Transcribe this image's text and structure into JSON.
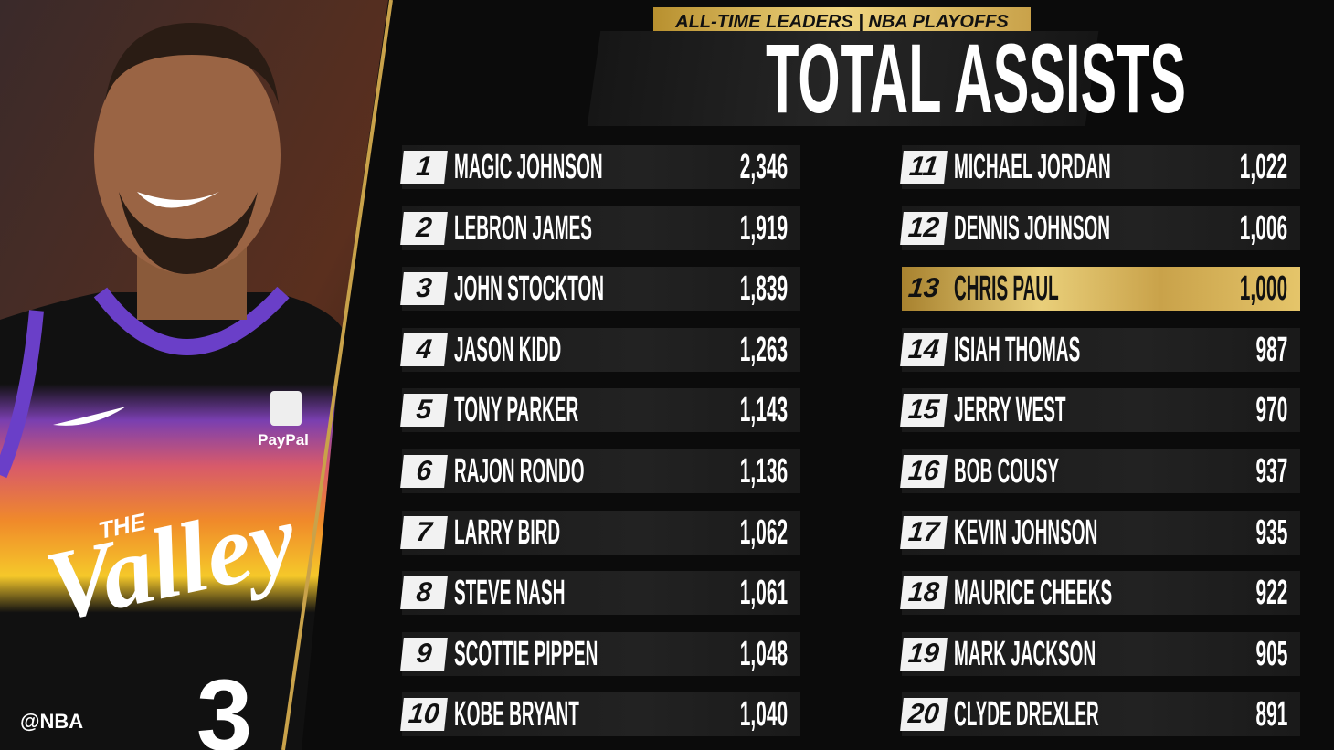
{
  "header": {
    "subtitle": "ALL-TIME LEADERS | NBA PLAYOFFS",
    "title": "TOTAL ASSISTS"
  },
  "photo": {
    "jersey_small": "THE",
    "jersey_big": "Valley",
    "sponsor": "PayPal",
    "number": "3",
    "credit": "@NBA"
  },
  "table": {
    "rows": [
      {
        "rank": 1,
        "name": "MAGIC JOHNSON",
        "value": "2,346"
      },
      {
        "rank": 2,
        "name": "LEBRON JAMES",
        "value": "1,919"
      },
      {
        "rank": 3,
        "name": "JOHN STOCKTON",
        "value": "1,839"
      },
      {
        "rank": 4,
        "name": "JASON KIDD",
        "value": "1,263"
      },
      {
        "rank": 5,
        "name": "TONY PARKER",
        "value": "1,143"
      },
      {
        "rank": 6,
        "name": "RAJON RONDO",
        "value": "1,136"
      },
      {
        "rank": 7,
        "name": "LARRY BIRD",
        "value": "1,062"
      },
      {
        "rank": 8,
        "name": "STEVE NASH",
        "value": "1,061"
      },
      {
        "rank": 9,
        "name": "SCOTTIE PIPPEN",
        "value": "1,048"
      },
      {
        "rank": 10,
        "name": "KOBE BRYANT",
        "value": "1,040"
      },
      {
        "rank": 11,
        "name": "MICHAEL JORDAN",
        "value": "1,022"
      },
      {
        "rank": 12,
        "name": "DENNIS JOHNSON",
        "value": "1,006"
      },
      {
        "rank": 13,
        "name": "CHRIS PAUL",
        "value": "1,000",
        "highlight": true
      },
      {
        "rank": 14,
        "name": "ISIAH THOMAS",
        "value": "987"
      },
      {
        "rank": 15,
        "name": "JERRY WEST",
        "value": "970"
      },
      {
        "rank": 16,
        "name": "BOB COUSY",
        "value": "937"
      },
      {
        "rank": 17,
        "name": "KEVIN JOHNSON",
        "value": "935"
      },
      {
        "rank": 18,
        "name": "MAURICE CHEEKS",
        "value": "922"
      },
      {
        "rank": 19,
        "name": "MARK JACKSON",
        "value": "905"
      },
      {
        "rank": 20,
        "name": "CLYDE DREXLER",
        "value": "891"
      }
    ]
  }
}
